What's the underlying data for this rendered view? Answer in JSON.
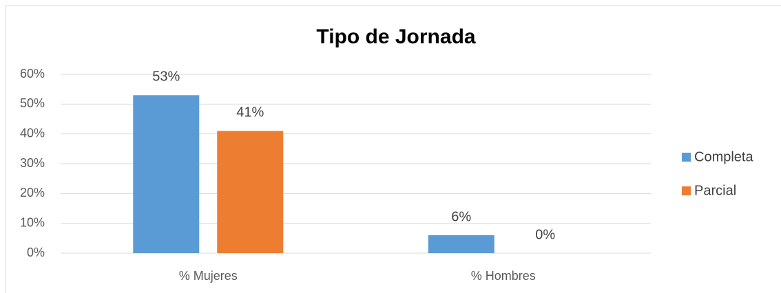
{
  "chart_data": {
    "type": "bar",
    "title": "Tipo de Jornada",
    "categories": [
      "% Mujeres",
      "% Hombres"
    ],
    "series": [
      {
        "name": "Completa",
        "color": "#5b9bd5",
        "values": [
          53,
          6
        ],
        "value_labels": [
          "53%",
          "6%"
        ]
      },
      {
        "name": "Parcial",
        "color": "#ed7d31",
        "values": [
          41,
          0
        ],
        "value_labels": [
          "41%",
          "0%"
        ]
      }
    ],
    "ylim": [
      0,
      60
    ],
    "yticks": [
      {
        "value": 0,
        "label": "0%"
      },
      {
        "value": 10,
        "label": "10%"
      },
      {
        "value": 20,
        "label": "20%"
      },
      {
        "value": 30,
        "label": "30%"
      },
      {
        "value": 40,
        "label": "40%"
      },
      {
        "value": 50,
        "label": "50%"
      },
      {
        "value": 60,
        "label": "60%"
      }
    ],
    "grid": true,
    "legend": "right"
  }
}
